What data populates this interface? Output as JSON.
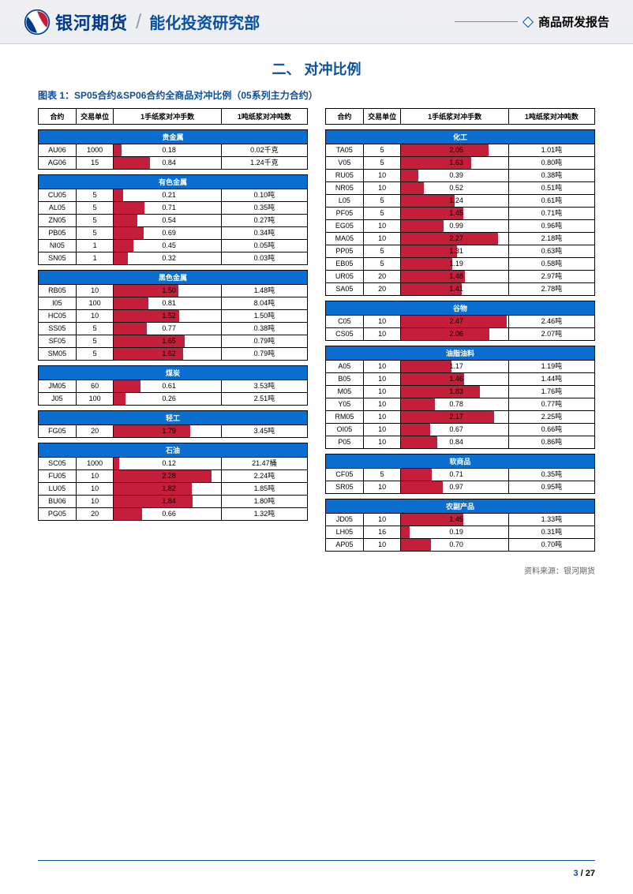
{
  "header": {
    "company": "银河期货",
    "department": "能化投资研究部",
    "report_label": "商品研发报告"
  },
  "section_title": "二、   对冲比例",
  "figure_caption": "图表 1：SP05合约&SP06合约全商品对冲比例（05系列主力合约）",
  "table_headers": [
    "合约",
    "交易单位",
    "1手纸浆对冲手数",
    "1吨纸浆对冲吨数"
  ],
  "bar_max": 2.5,
  "bar_color": "#c41e3a",
  "cat_color": "#0a6ed1",
  "left_groups": [
    {
      "name": "贵金属",
      "rows": [
        {
          "c": "AU06",
          "u": "1000",
          "h": 0.18,
          "t": "0.02千克"
        },
        {
          "c": "AG06",
          "u": "15",
          "h": 0.84,
          "t": "1.24千克"
        }
      ]
    },
    {
      "name": "有色金属",
      "rows": [
        {
          "c": "CU05",
          "u": "5",
          "h": 0.21,
          "t": "0.10吨"
        },
        {
          "c": "AL05",
          "u": "5",
          "h": 0.71,
          "t": "0.35吨"
        },
        {
          "c": "ZN05",
          "u": "5",
          "h": 0.54,
          "t": "0.27吨"
        },
        {
          "c": "PB05",
          "u": "5",
          "h": 0.69,
          "t": "0.34吨"
        },
        {
          "c": "NI05",
          "u": "1",
          "h": 0.45,
          "t": "0.05吨"
        },
        {
          "c": "SN05",
          "u": "1",
          "h": 0.32,
          "t": "0.03吨"
        }
      ]
    },
    {
      "name": "黑色金属",
      "rows": [
        {
          "c": "RB05",
          "u": "10",
          "h": 1.5,
          "t": "1.48吨"
        },
        {
          "c": "I05",
          "u": "100",
          "h": 0.81,
          "t": "8.04吨"
        },
        {
          "c": "HC05",
          "u": "10",
          "h": 1.52,
          "t": "1.50吨"
        },
        {
          "c": "SS05",
          "u": "5",
          "h": 0.77,
          "t": "0.38吨"
        },
        {
          "c": "SF05",
          "u": "5",
          "h": 1.65,
          "t": "0.79吨"
        },
        {
          "c": "SM05",
          "u": "5",
          "h": 1.62,
          "t": "0.79吨"
        }
      ]
    },
    {
      "name": "煤炭",
      "rows": [
        {
          "c": "JM05",
          "u": "60",
          "h": 0.61,
          "t": "3.53吨"
        },
        {
          "c": "J05",
          "u": "100",
          "h": 0.26,
          "t": "2.51吨"
        }
      ]
    },
    {
      "name": "轻工",
      "rows": [
        {
          "c": "FG05",
          "u": "20",
          "h": 1.79,
          "t": "3.45吨"
        }
      ]
    },
    {
      "name": "石油",
      "rows": [
        {
          "c": "SC05",
          "u": "1000",
          "h": 0.12,
          "t": "21.47桶"
        },
        {
          "c": "FU05",
          "u": "10",
          "h": 2.28,
          "t": "2.24吨"
        },
        {
          "c": "LU05",
          "u": "10",
          "h": 1.82,
          "t": "1.85吨"
        },
        {
          "c": "BU06",
          "u": "10",
          "h": 1.84,
          "t": "1.80吨"
        },
        {
          "c": "PG05",
          "u": "20",
          "h": 0.66,
          "t": "1.32吨"
        }
      ]
    }
  ],
  "right_groups": [
    {
      "name": "化工",
      "rows": [
        {
          "c": "TA05",
          "u": "5",
          "h": 2.05,
          "t": "1.01吨"
        },
        {
          "c": "V05",
          "u": "5",
          "h": 1.63,
          "t": "0.80吨"
        },
        {
          "c": "RU05",
          "u": "10",
          "h": 0.39,
          "t": "0.38吨"
        },
        {
          "c": "NR05",
          "u": "10",
          "h": 0.52,
          "t": "0.51吨"
        },
        {
          "c": "L05",
          "u": "5",
          "h": 1.24,
          "t": "0.61吨"
        },
        {
          "c": "PF05",
          "u": "5",
          "h": 1.45,
          "t": "0.71吨"
        },
        {
          "c": "EG05",
          "u": "10",
          "h": 0.99,
          "t": "0.96吨"
        },
        {
          "c": "MA05",
          "u": "10",
          "h": 2.27,
          "t": "2.18吨"
        },
        {
          "c": "PP05",
          "u": "5",
          "h": 1.31,
          "t": "0.63吨"
        },
        {
          "c": "EB05",
          "u": "5",
          "h": 1.19,
          "t": "0.58吨"
        },
        {
          "c": "UR05",
          "u": "20",
          "h": 1.48,
          "t": "2.97吨"
        },
        {
          "c": "SA05",
          "u": "20",
          "h": 1.41,
          "t": "2.78吨"
        }
      ]
    },
    {
      "name": "谷物",
      "rows": [
        {
          "c": "C05",
          "u": "10",
          "h": 2.47,
          "t": "2.46吨"
        },
        {
          "c": "CS05",
          "u": "10",
          "h": 2.06,
          "t": "2.07吨"
        }
      ]
    },
    {
      "name": "油脂油料",
      "rows": [
        {
          "c": "A05",
          "u": "10",
          "h": 1.17,
          "t": "1.19吨"
        },
        {
          "c": "B05",
          "u": "10",
          "h": 1.46,
          "t": "1.44吨"
        },
        {
          "c": "M05",
          "u": "10",
          "h": 1.83,
          "t": "1.76吨"
        },
        {
          "c": "Y05",
          "u": "10",
          "h": 0.78,
          "t": "0.77吨"
        },
        {
          "c": "RM05",
          "u": "10",
          "h": 2.17,
          "t": "2.25吨"
        },
        {
          "c": "OI05",
          "u": "10",
          "h": 0.67,
          "t": "0.66吨"
        },
        {
          "c": "P05",
          "u": "10",
          "h": 0.84,
          "t": "0.86吨"
        }
      ]
    },
    {
      "name": "软商品",
      "rows": [
        {
          "c": "CF05",
          "u": "5",
          "h": 0.71,
          "t": "0.35吨"
        },
        {
          "c": "SR05",
          "u": "10",
          "h": 0.97,
          "t": "0.95吨"
        }
      ]
    },
    {
      "name": "农副产品",
      "rows": [
        {
          "c": "JD05",
          "u": "10",
          "h": 1.45,
          "t": "1.33吨"
        },
        {
          "c": "LH05",
          "u": "16",
          "h": 0.19,
          "t": "0.31吨"
        },
        {
          "c": "AP05",
          "u": "10",
          "h": 0.7,
          "t": "0.70吨"
        }
      ]
    }
  ],
  "source": "资料来源：银河期货",
  "footer": {
    "current": "3",
    "sep": " / ",
    "total": "27"
  }
}
